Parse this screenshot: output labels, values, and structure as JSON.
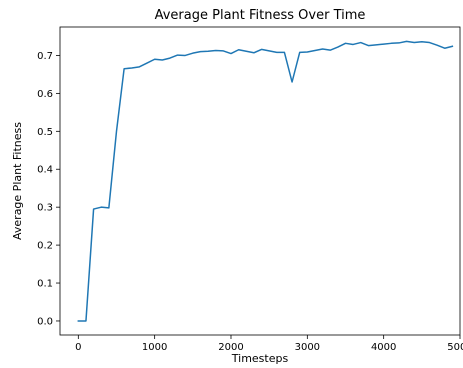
{
  "chart_data": {
    "type": "line",
    "title": "Average Plant Fitness Over Time",
    "xlabel": "Timesteps",
    "ylabel": "Average Plant Fitness",
    "xlim": [
      -240,
      5000
    ],
    "ylim": [
      -0.037,
      0.775
    ],
    "xticks": [
      0,
      1000,
      2000,
      3000,
      4000,
      5000
    ],
    "xtick_labels": [
      "0",
      "1000",
      "2000",
      "3000",
      "4000",
      "5000"
    ],
    "yticks": [
      0.0,
      0.1,
      0.2,
      0.3,
      0.4,
      0.5,
      0.6,
      0.7
    ],
    "ytick_labels": [
      "0.0",
      "0.1",
      "0.2",
      "0.3",
      "0.4",
      "0.5",
      "0.6",
      "0.7"
    ],
    "grid": false,
    "legend": "none",
    "series": [
      {
        "color": "#1f77b4",
        "x": [
          0,
          100,
          200,
          300,
          400,
          500,
          600,
          700,
          800,
          900,
          1000,
          1100,
          1200,
          1300,
          1400,
          1500,
          1600,
          1700,
          1800,
          1900,
          2000,
          2100,
          2200,
          2300,
          2400,
          2500,
          2600,
          2700,
          2800,
          2900,
          3000,
          3100,
          3200,
          3300,
          3400,
          3500,
          3600,
          3700,
          3800,
          3900,
          4000,
          4100,
          4200,
          4300,
          4400,
          4500,
          4600,
          4700,
          4800,
          4900
        ],
        "y": [
          0.0,
          0.0,
          0.295,
          0.3,
          0.298,
          0.5,
          0.665,
          0.667,
          0.67,
          0.68,
          0.69,
          0.688,
          0.693,
          0.701,
          0.7,
          0.706,
          0.71,
          0.711,
          0.713,
          0.712,
          0.705,
          0.715,
          0.711,
          0.707,
          0.716,
          0.712,
          0.708,
          0.708,
          0.63,
          0.708,
          0.709,
          0.713,
          0.717,
          0.714,
          0.722,
          0.732,
          0.729,
          0.734,
          0.726,
          0.728,
          0.73,
          0.732,
          0.733,
          0.737,
          0.734,
          0.736,
          0.734,
          0.727,
          0.719,
          0.724
        ]
      }
    ]
  }
}
